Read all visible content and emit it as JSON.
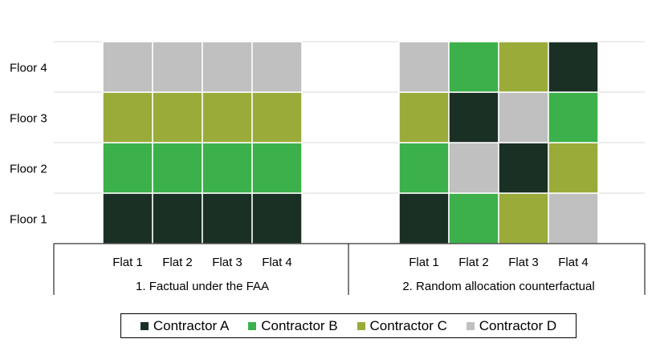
{
  "chart_data": {
    "type": "heatmap",
    "y_categories": [
      "Floor 1",
      "Floor 2",
      "Floor 3",
      "Floor 4"
    ],
    "x_categories": [
      "Flat 1",
      "Flat 2",
      "Flat 3",
      "Flat 4"
    ],
    "panels": [
      {
        "label": "1. Factual under the FAA",
        "grid": [
          [
            "A",
            "A",
            "A",
            "A"
          ],
          [
            "B",
            "B",
            "B",
            "B"
          ],
          [
            "C",
            "C",
            "C",
            "C"
          ],
          [
            "D",
            "D",
            "D",
            "D"
          ]
        ]
      },
      {
        "label": "2. Random allocation counterfactual",
        "grid": [
          [
            "A",
            "B",
            "C",
            "D"
          ],
          [
            "B",
            "D",
            "A",
            "C"
          ],
          [
            "C",
            "A",
            "D",
            "B"
          ],
          [
            "D",
            "B",
            "C",
            "A"
          ]
        ]
      }
    ],
    "legend": [
      {
        "key": "A",
        "name": "Contractor A",
        "color": "#1b3024"
      },
      {
        "key": "B",
        "name": "Contractor B",
        "color": "#3cb04a"
      },
      {
        "key": "C",
        "name": "Contractor C",
        "color": "#9aab3a"
      },
      {
        "key": "D",
        "name": "Contractor D",
        "color": "#c0c0c0"
      }
    ],
    "legend_position": "bottom",
    "grid": true
  }
}
